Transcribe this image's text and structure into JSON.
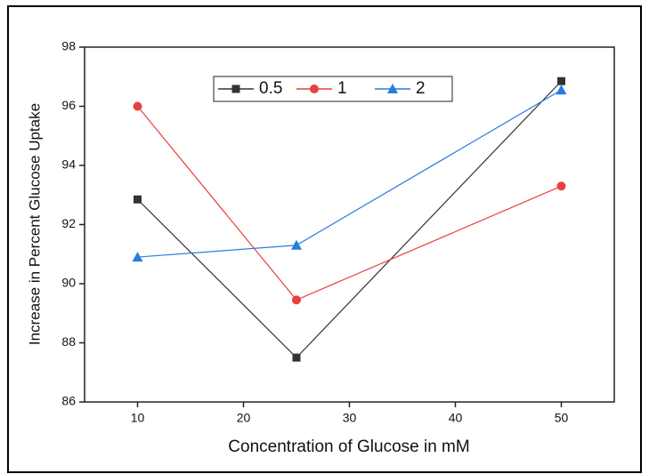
{
  "chart_data": {
    "type": "line",
    "x_label": "Concentration of Glucose in mM",
    "y_label": "Increase in Percent Glucose Uptake",
    "x": [
      10,
      25,
      50
    ],
    "series": [
      {
        "name": "0.5",
        "color": "#333333",
        "marker": "square",
        "values": [
          92.85,
          87.5,
          96.85
        ]
      },
      {
        "name": "1",
        "color": "#e8413f",
        "marker": "circle",
        "values": [
          96.0,
          89.45,
          93.3
        ]
      },
      {
        "name": "2",
        "color": "#2a7be0",
        "marker": "triangle",
        "values": [
          90.9,
          91.3,
          96.55
        ]
      }
    ],
    "xlim": [
      5,
      55
    ],
    "xticks": [
      10,
      20,
      30,
      40,
      50
    ],
    "ylim": [
      86,
      98
    ],
    "yticks": [
      86,
      88,
      90,
      92,
      94,
      96,
      98
    ]
  }
}
